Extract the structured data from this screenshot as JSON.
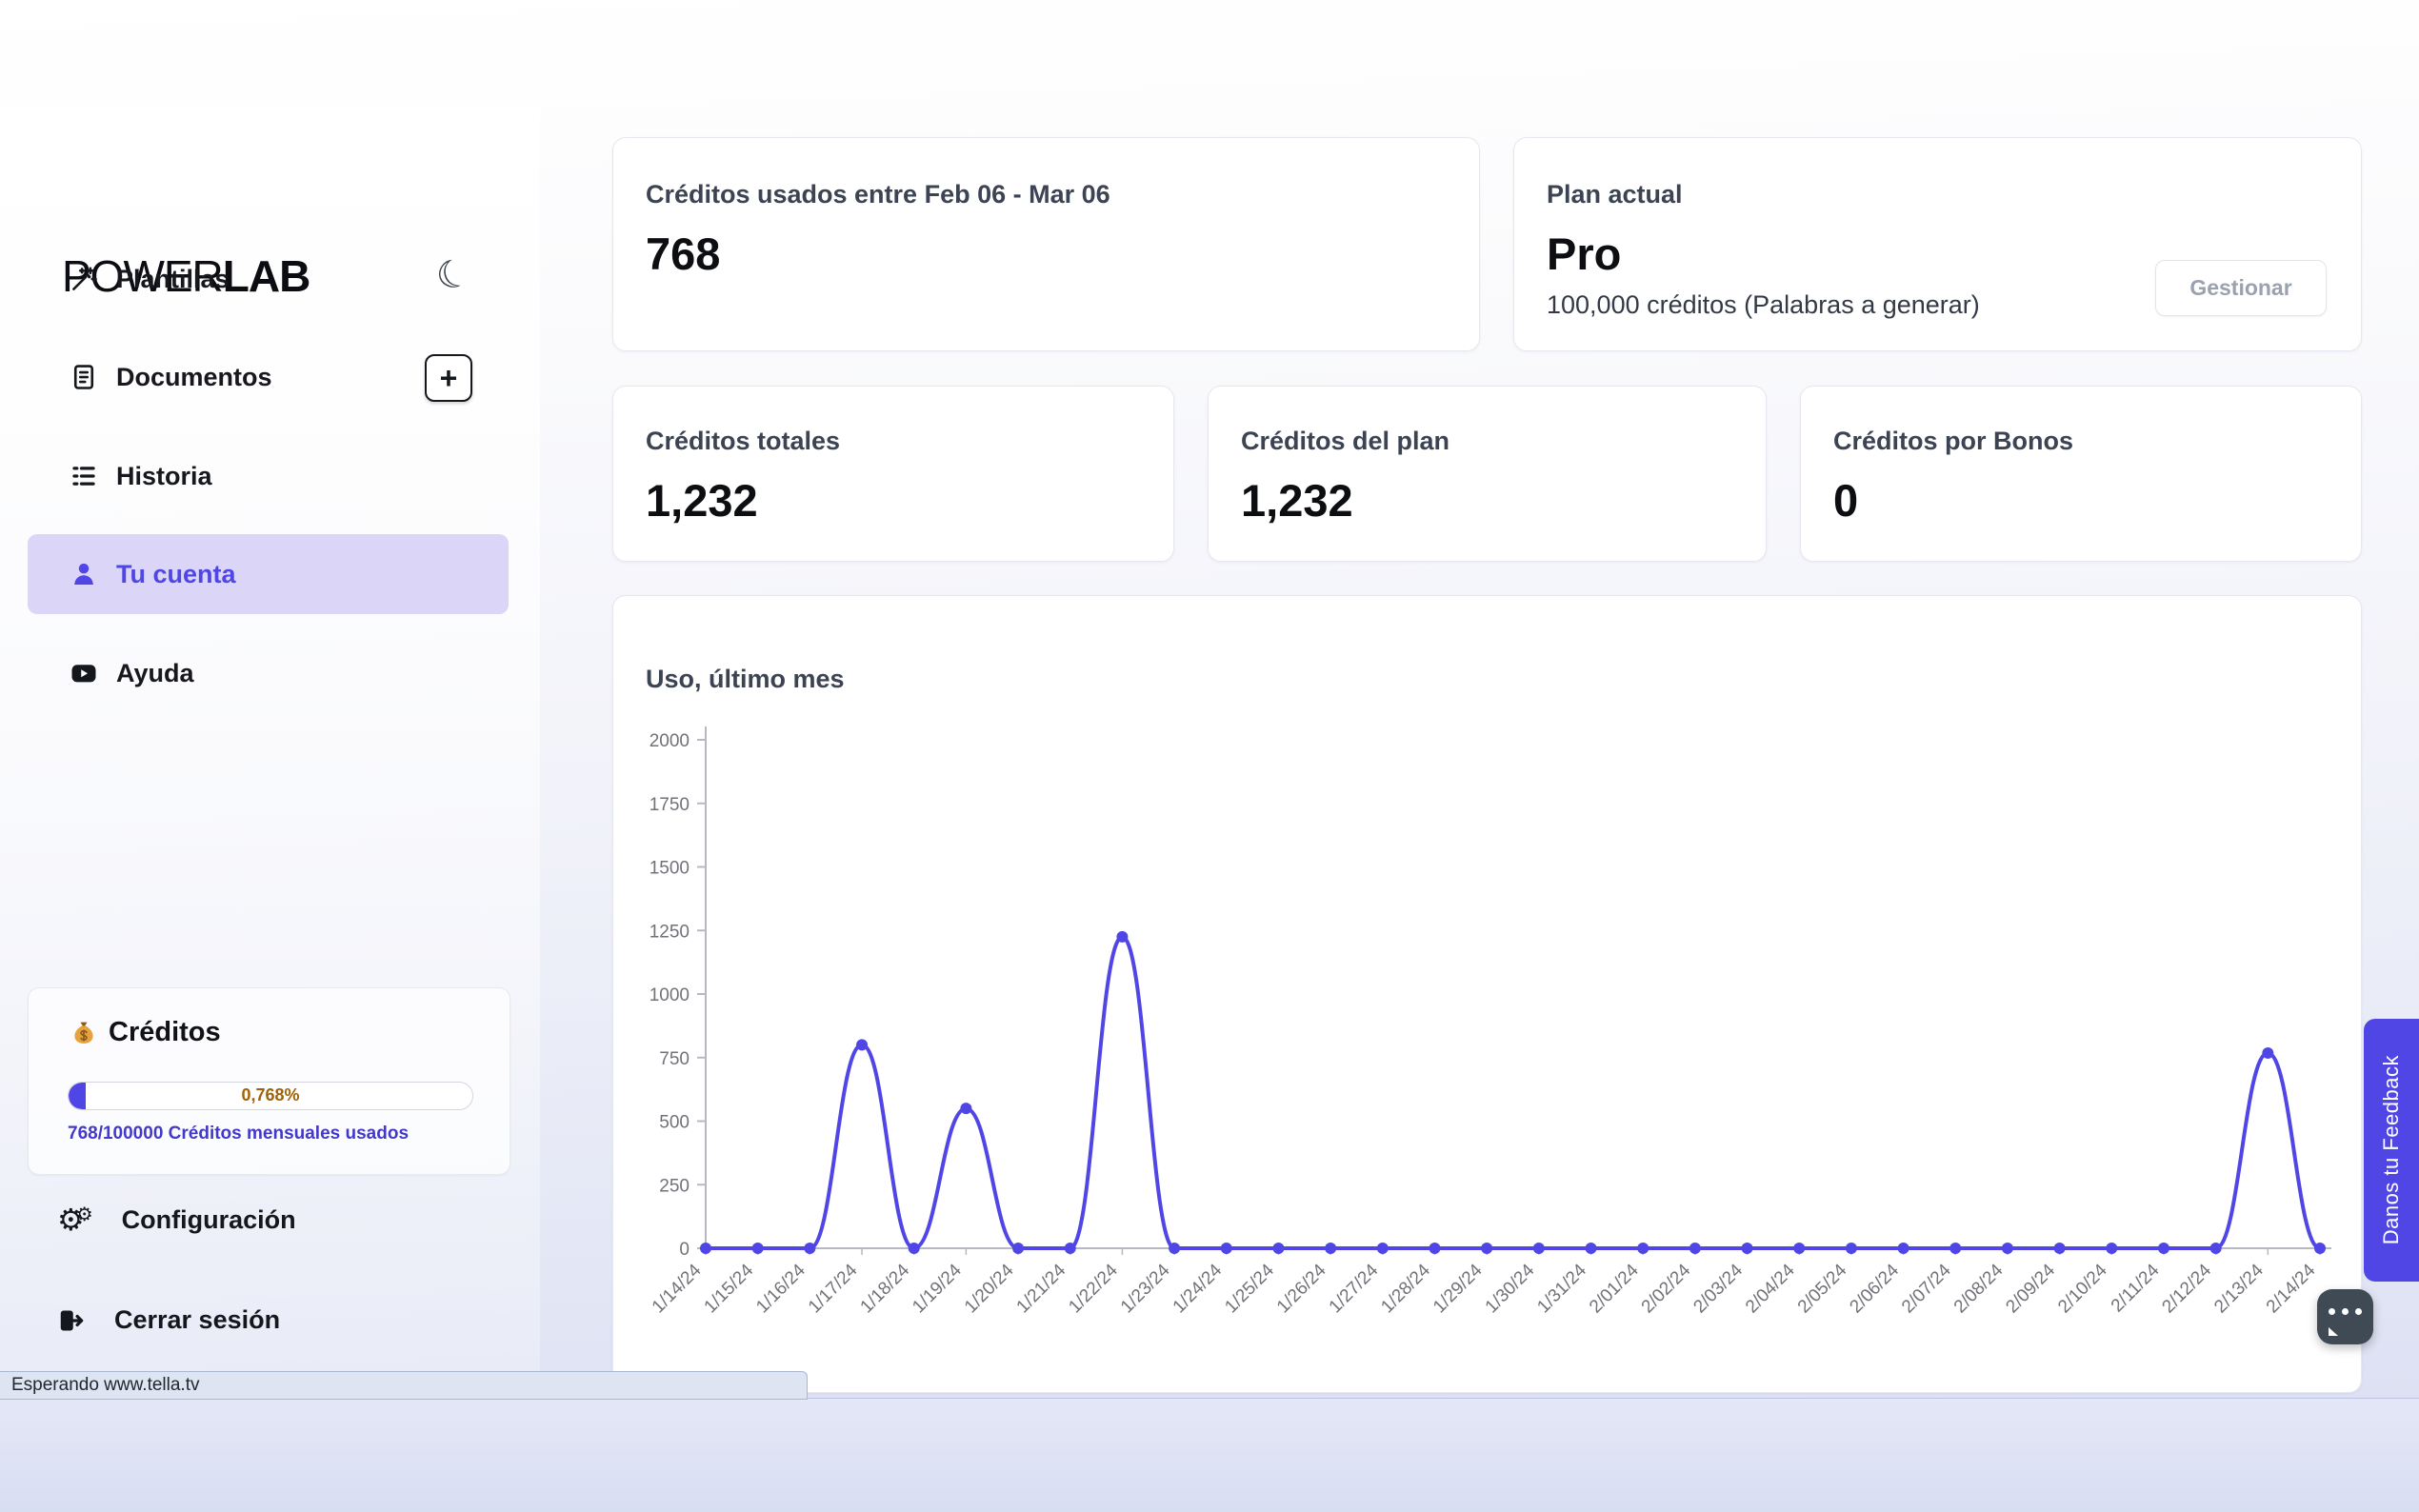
{
  "app": {
    "logo_part1": "POWER",
    "logo_part2": "LAB"
  },
  "icons": {
    "moon": "☾",
    "plus": "+",
    "gear": "⚙"
  },
  "sidebar": {
    "items": [
      {
        "label": "Plantillas",
        "icon": "wand-icon"
      },
      {
        "label": "Documentos",
        "icon": "document-icon"
      },
      {
        "label": "Historia",
        "icon": "list-icon"
      },
      {
        "label": "Tu cuenta",
        "icon": "user-icon",
        "active": true
      },
      {
        "label": "Ayuda",
        "icon": "video-icon"
      }
    ],
    "credits_card": {
      "title": "Créditos",
      "progress_label": "0,768%",
      "progress_percent": 0.768,
      "usage_label": "768/100000 Créditos mensuales usados"
    },
    "settings": {
      "label": "Configuración"
    },
    "logout": {
      "label": "Cerrar sesión"
    }
  },
  "status_bar": {
    "text": "Esperando www.tella.tv"
  },
  "main": {
    "usage_card": {
      "title": "Créditos usados entre Feb 06 - Mar 06",
      "value": "768"
    },
    "plan_card": {
      "title": "Plan actual",
      "plan_name": "Pro",
      "plan_detail": "100,000 créditos (Palabras a generar)",
      "manage_button": "Gestionar"
    },
    "totals_card": {
      "title": "Créditos totales",
      "value": "1,232"
    },
    "plan_credits_card": {
      "title": "Créditos del plan",
      "value": "1,232"
    },
    "bonus_card": {
      "title": "Créditos por Bonos",
      "value": "0"
    }
  },
  "chart_data": {
    "type": "line",
    "title": "Uso, último mes",
    "x": [
      "1/14/24",
      "1/15/24",
      "1/16/24",
      "1/17/24",
      "1/18/24",
      "1/19/24",
      "1/20/24",
      "1/21/24",
      "1/22/24",
      "1/23/24",
      "1/24/24",
      "1/25/24",
      "1/26/24",
      "1/27/24",
      "1/28/24",
      "1/29/24",
      "1/30/24",
      "1/31/24",
      "2/01/24",
      "2/02/24",
      "2/03/24",
      "2/04/24",
      "2/05/24",
      "2/06/24",
      "2/07/24",
      "2/08/24",
      "2/09/24",
      "2/10/24",
      "2/11/24",
      "2/12/24",
      "2/13/24",
      "2/14/24"
    ],
    "values": [
      0,
      0,
      0,
      800,
      0,
      550,
      0,
      0,
      1225,
      0,
      0,
      0,
      0,
      0,
      0,
      0,
      0,
      0,
      0,
      0,
      0,
      0,
      0,
      0,
      0,
      0,
      0,
      0,
      0,
      0,
      768,
      0
    ],
    "ylim": [
      0,
      2000
    ],
    "yticks": [
      0,
      250,
      500,
      750,
      1000,
      1250,
      1500,
      1750,
      2000
    ],
    "grid": false,
    "legend": "none",
    "line_color": "#4f46e5",
    "point_color": "#4f46e5",
    "axis_color": "#b6b9c4",
    "tick_label_color": "#71717a"
  },
  "feedback": {
    "label": "Danos tu Feedback"
  }
}
